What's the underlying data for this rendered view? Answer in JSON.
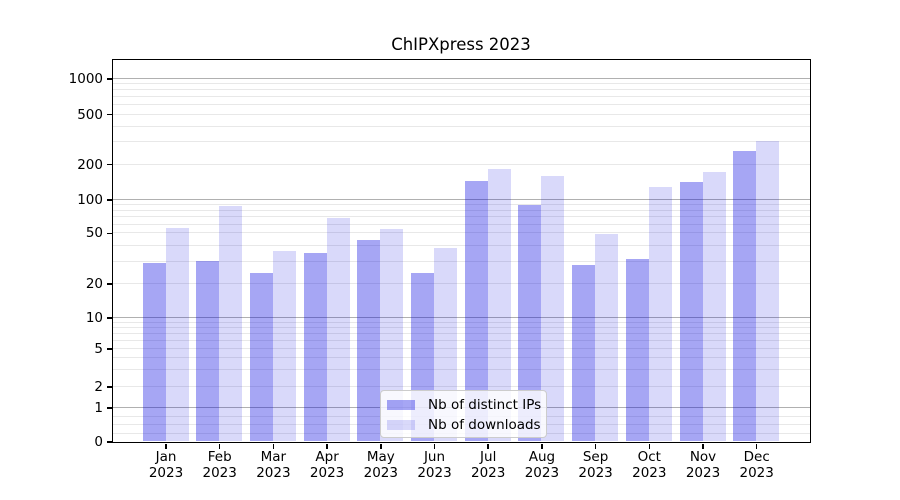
{
  "chart_data": {
    "type": "bar",
    "title": "ChIPXpress 2023",
    "categories": [
      "Jan",
      "Feb",
      "Mar",
      "Apr",
      "May",
      "Jun",
      "Jul",
      "Aug",
      "Sep",
      "Oct",
      "Nov",
      "Dec"
    ],
    "x_year": "2023",
    "series": [
      {
        "name": "Nb of distinct IPs",
        "color": "rgba(0,0,224,0.35)",
        "color_hex": "#a6a6f4",
        "values": [
          29,
          30,
          24,
          35,
          44,
          24,
          143,
          89,
          28,
          31,
          140,
          255
        ]
      },
      {
        "name": "Nb of downloads",
        "color": "rgba(0,0,224,0.15)",
        "color_hex": "#d9d9fa",
        "values": [
          55,
          87,
          36,
          68,
          54,
          38,
          183,
          158,
          49,
          128,
          172,
          305
        ]
      }
    ],
    "y_ticks": [
      0,
      1,
      2,
      5,
      10,
      20,
      50,
      100,
      200,
      500,
      1000
    ],
    "y_axis": {
      "scale": "symlog",
      "ylim": [
        0,
        1400
      ],
      "anchors": [
        [
          0,
          0
        ],
        [
          1,
          0.089
        ],
        [
          2,
          0.144
        ],
        [
          5,
          0.2435
        ],
        [
          10,
          0.3246
        ],
        [
          20,
          0.4136
        ],
        [
          50,
          0.5463
        ],
        [
          100,
          0.6335
        ],
        [
          200,
          0.7264
        ],
        [
          500,
          0.8573
        ],
        [
          1000,
          0.9503
        ]
      ]
    },
    "grid": {
      "major": [
        1,
        10,
        100,
        1000
      ],
      "minor": [
        0.25,
        0.5,
        0.75,
        2,
        3,
        4,
        5,
        6,
        7,
        8,
        9,
        20,
        30,
        40,
        50,
        60,
        70,
        80,
        90,
        200,
        300,
        400,
        500,
        600,
        700,
        800,
        900
      ]
    },
    "legend": {
      "position": "lower center"
    },
    "colors": {
      "grid_major": "#b0b0b0",
      "grid_minor": "#e8e8e8",
      "spine": "#000000",
      "background": "#ffffff"
    }
  }
}
